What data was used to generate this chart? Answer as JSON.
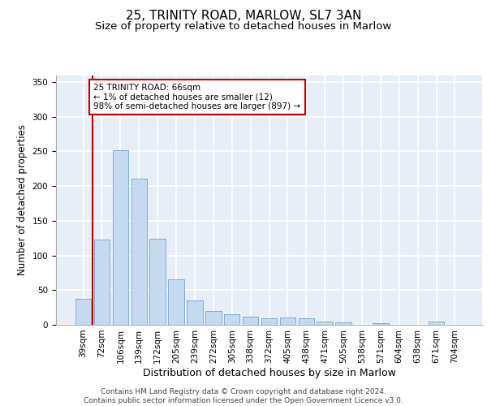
{
  "title1": "25, TRINITY ROAD, MARLOW, SL7 3AN",
  "title2": "Size of property relative to detached houses in Marlow",
  "xlabel": "Distribution of detached houses by size in Marlow",
  "ylabel": "Number of detached properties",
  "categories": [
    "39sqm",
    "72sqm",
    "106sqm",
    "139sqm",
    "172sqm",
    "205sqm",
    "239sqm",
    "272sqm",
    "305sqm",
    "338sqm",
    "372sqm",
    "405sqm",
    "438sqm",
    "471sqm",
    "505sqm",
    "538sqm",
    "571sqm",
    "604sqm",
    "638sqm",
    "671sqm",
    "704sqm"
  ],
  "values": [
    37,
    123,
    252,
    211,
    124,
    66,
    35,
    20,
    15,
    12,
    9,
    10,
    9,
    5,
    3,
    0,
    2,
    0,
    0,
    5,
    0
  ],
  "bar_color": "#c5d9f1",
  "bar_edge_color": "#7bafd4",
  "annotation_box_color": "#cc0000",
  "annotation_text": "25 TRINITY ROAD: 66sqm\n← 1% of detached houses are smaller (12)\n98% of semi-detached houses are larger (897) →",
  "vline_color": "#cc0000",
  "vline_x": 0.5,
  "ylim": [
    0,
    360
  ],
  "yticks": [
    0,
    50,
    100,
    150,
    200,
    250,
    300,
    350
  ],
  "background_color": "#e8eef8",
  "grid_color": "#ffffff",
  "footer1": "Contains HM Land Registry data © Crown copyright and database right 2024.",
  "footer2": "Contains public sector information licensed under the Open Government Licence v3.0.",
  "title1_fontsize": 11,
  "title2_fontsize": 9.5,
  "xlabel_fontsize": 9,
  "ylabel_fontsize": 8.5,
  "tick_fontsize": 7.5,
  "footer_fontsize": 6.5,
  "ann_fontsize": 7.5
}
